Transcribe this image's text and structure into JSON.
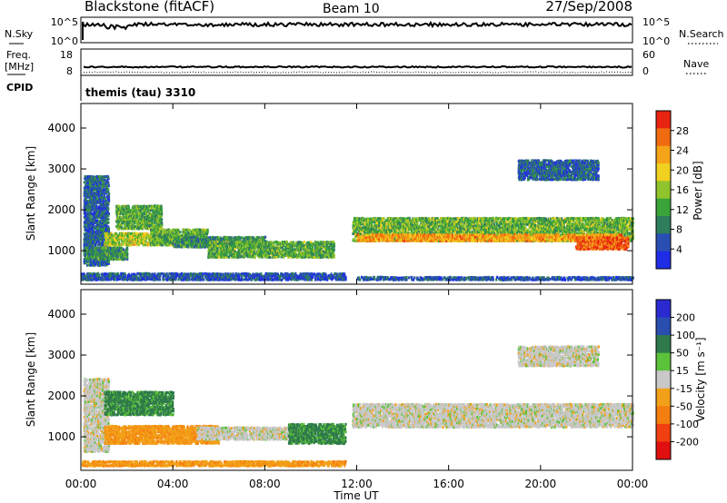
{
  "header": {
    "station": "Blackstone (fitACF)",
    "beam": "Beam 10",
    "date": "27/Sep/2008"
  },
  "noise_panel": {
    "left_label": "N.Sky",
    "right_label": "N.Search",
    "left_ticks": [
      "10^5",
      "10^0"
    ],
    "right_ticks": [
      "10^5",
      "10^0"
    ]
  },
  "freq_panel": {
    "left_label_1": "Freq.",
    "left_label_2": "[MHz]",
    "right_label": "Nave",
    "left_ticks": [
      "18",
      "8"
    ],
    "right_ticks": [
      "60",
      "0"
    ]
  },
  "cpid": {
    "label": "CPID",
    "value": "themis (tau) 3310"
  },
  "colors": {
    "frame": "#000000",
    "power_scale": [
      "#1f2de6",
      "#2a4fb3",
      "#2e7d5d",
      "#3aa33a",
      "#8fc42c",
      "#f0d020",
      "#f5a318",
      "#f06a10",
      "#e82410"
    ],
    "velocity_scale": [
      "#2a2ad0",
      "#2a4db0",
      "#2e7a4a",
      "#5cc23a",
      "#c8c8c8",
      "#f2a018",
      "#f57e10",
      "#f04010",
      "#e01010"
    ]
  },
  "chart_data": [
    {
      "type": "heatmap",
      "name": "power",
      "ylabel": "Slant Range [km]",
      "xlabel": "",
      "x_tick_labels": [
        "00:00",
        "04:00",
        "08:00",
        "12:00",
        "16:00",
        "20:00",
        "00:00"
      ],
      "x_range_hours": [
        0,
        24
      ],
      "ylim": [
        180,
        4600
      ],
      "y_ticks": [
        1000,
        2000,
        3000,
        4000
      ],
      "colorbar": {
        "label": "Power [dB]",
        "ticks": [
          "4",
          "8",
          "12",
          "16",
          "20",
          "24",
          "28"
        ],
        "range": [
          0,
          30
        ]
      },
      "bands": [
        {
          "t0": 0.1,
          "t1": 1.2,
          "r0": 600,
          "r1": 2800,
          "v": 6
        },
        {
          "t0": 0.1,
          "t1": 2.0,
          "r0": 750,
          "r1": 1050,
          "v": 10
        },
        {
          "t0": 1.0,
          "t1": 4.0,
          "r0": 1100,
          "r1": 1400,
          "v": 16
        },
        {
          "t0": 1.5,
          "t1": 3.5,
          "r0": 1500,
          "r1": 2100,
          "v": 12
        },
        {
          "t0": 3.0,
          "t1": 5.5,
          "r0": 1100,
          "r1": 1500,
          "v": 12
        },
        {
          "t0": 4.0,
          "t1": 8.0,
          "r0": 1050,
          "r1": 1300,
          "v": 10
        },
        {
          "t0": 5.5,
          "t1": 11.0,
          "r0": 800,
          "r1": 1200,
          "v": 12
        },
        {
          "t0": 0.0,
          "t1": 11.5,
          "r0": 250,
          "r1": 450,
          "v": 5
        },
        {
          "t0": 11.8,
          "t1": 24.0,
          "r0": 1200,
          "r1": 1800,
          "v": 13
        },
        {
          "t0": 12.0,
          "t1": 23.5,
          "r0": 1200,
          "r1": 1400,
          "v": 22
        },
        {
          "t0": 21.5,
          "t1": 23.8,
          "r0": 1000,
          "r1": 1300,
          "v": 26
        },
        {
          "t0": 19.0,
          "t1": 22.5,
          "r0": 2700,
          "r1": 3200,
          "v": 6
        },
        {
          "t0": 12.0,
          "t1": 24.0,
          "r0": 250,
          "r1": 350,
          "v": 5
        }
      ]
    },
    {
      "type": "heatmap",
      "name": "velocity",
      "ylabel": "Slant Range [km]",
      "xlabel": "Time UT",
      "x_tick_labels": [
        "00:00",
        "04:00",
        "08:00",
        "12:00",
        "16:00",
        "20:00",
        "00:00"
      ],
      "x_range_hours": [
        0,
        24
      ],
      "ylim": [
        180,
        4600
      ],
      "y_ticks": [
        1000,
        2000,
        3000,
        4000
      ],
      "colorbar": {
        "label": "Velocity [m s⁻¹]",
        "ticks": [
          "200",
          "100",
          "50",
          "15",
          "-15",
          "-50",
          "-100",
          "-200"
        ],
        "range": [
          -250,
          250
        ]
      },
      "bands": [
        {
          "t0": 0.1,
          "t1": 1.2,
          "r0": 600,
          "r1": 2400,
          "v": 0
        },
        {
          "t0": 1.0,
          "t1": 4.0,
          "r0": 1500,
          "r1": 2100,
          "v": 60
        },
        {
          "t0": 1.0,
          "t1": 6.0,
          "r0": 800,
          "r1": 1250,
          "v": -40
        },
        {
          "t0": 5.0,
          "t1": 9.5,
          "r0": 900,
          "r1": 1200,
          "v": 0
        },
        {
          "t0": 9.0,
          "t1": 11.5,
          "r0": 800,
          "r1": 1300,
          "v": 60
        },
        {
          "t0": 0.0,
          "t1": 11.5,
          "r0": 250,
          "r1": 400,
          "v": -40
        },
        {
          "t0": 11.8,
          "t1": 24.0,
          "r0": 1200,
          "r1": 1800,
          "v": 0
        },
        {
          "t0": 19.0,
          "t1": 22.5,
          "r0": 2700,
          "r1": 3200,
          "v": 0
        }
      ]
    }
  ]
}
